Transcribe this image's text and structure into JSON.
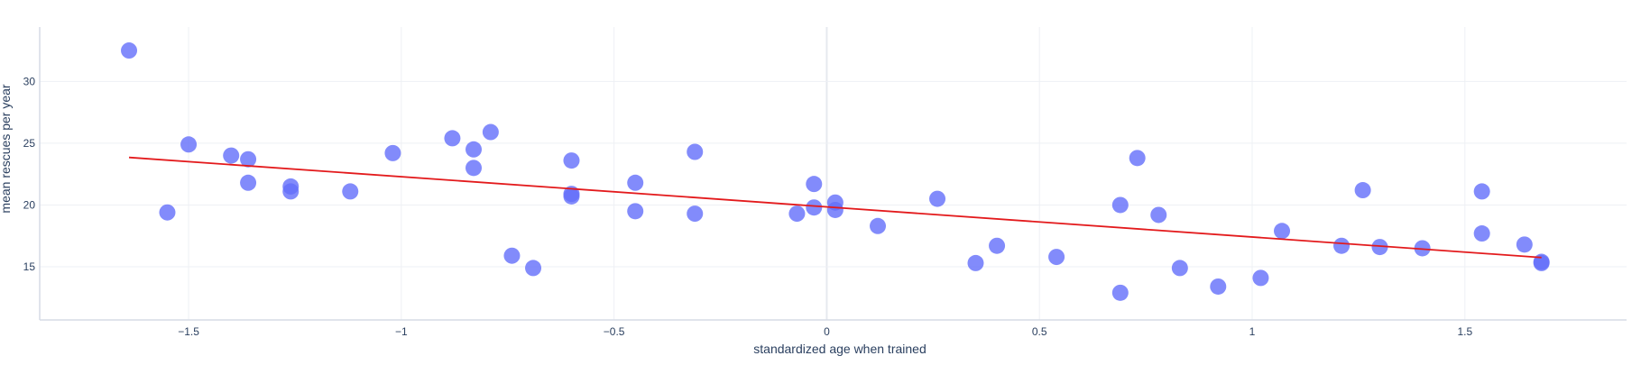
{
  "chart_data": {
    "type": "scatter",
    "xlabel": "standardized age when trained",
    "ylabel": "mean rescues per year",
    "xlim": [
      -1.85,
      1.88
    ],
    "ylim": [
      10.7,
      34.4
    ],
    "x_ticks": [
      -1.5,
      -1,
      -0.5,
      0,
      0.5,
      1,
      1.5
    ],
    "x_tick_labels": [
      "−1.5",
      "−1",
      "−0.5",
      "0",
      "0.5",
      "1",
      "1.5"
    ],
    "y_ticks": [
      15,
      20,
      25,
      30
    ],
    "y_tick_labels": [
      "15",
      "20",
      "25",
      "30"
    ],
    "grid": true,
    "legend": "none",
    "series": [
      {
        "type": "scatter",
        "color": "#636efa",
        "points": [
          [
            -1.64,
            32.5
          ],
          [
            -1.5,
            24.9
          ],
          [
            -1.55,
            19.4
          ],
          [
            -1.4,
            24.0
          ],
          [
            -1.36,
            23.7
          ],
          [
            -1.36,
            21.8
          ],
          [
            -1.26,
            21.5
          ],
          [
            -1.26,
            21.1
          ],
          [
            -1.12,
            21.1
          ],
          [
            -1.02,
            24.2
          ],
          [
            -0.88,
            25.4
          ],
          [
            -0.83,
            24.5
          ],
          [
            -0.83,
            23.0
          ],
          [
            -0.79,
            25.9
          ],
          [
            -0.74,
            15.9
          ],
          [
            -0.69,
            14.9
          ],
          [
            -0.6,
            23.6
          ],
          [
            -0.6,
            20.9
          ],
          [
            -0.6,
            20.7
          ],
          [
            -0.45,
            21.8
          ],
          [
            -0.45,
            19.5
          ],
          [
            -0.31,
            24.3
          ],
          [
            -0.31,
            19.3
          ],
          [
            -0.07,
            19.3
          ],
          [
            -0.03,
            21.7
          ],
          [
            -0.03,
            19.8
          ],
          [
            0.02,
            20.2
          ],
          [
            0.02,
            19.6
          ],
          [
            0.12,
            18.3
          ],
          [
            0.26,
            20.5
          ],
          [
            0.35,
            15.3
          ],
          [
            0.4,
            16.7
          ],
          [
            0.54,
            15.8
          ],
          [
            0.69,
            20.0
          ],
          [
            0.69,
            12.9
          ],
          [
            0.73,
            23.8
          ],
          [
            0.78,
            19.2
          ],
          [
            0.83,
            14.9
          ],
          [
            0.92,
            13.4
          ],
          [
            1.02,
            14.1
          ],
          [
            1.07,
            17.9
          ],
          [
            1.21,
            16.7
          ],
          [
            1.26,
            21.2
          ],
          [
            1.3,
            16.6
          ],
          [
            1.4,
            16.5
          ],
          [
            1.54,
            21.1
          ],
          [
            1.54,
            17.7
          ],
          [
            1.64,
            16.8
          ],
          [
            1.68,
            15.4
          ],
          [
            1.68,
            15.3
          ]
        ]
      },
      {
        "type": "line",
        "color": "#e31a1c",
        "points": [
          [
            -1.64,
            23.85
          ],
          [
            1.68,
            15.75
          ]
        ]
      }
    ]
  }
}
